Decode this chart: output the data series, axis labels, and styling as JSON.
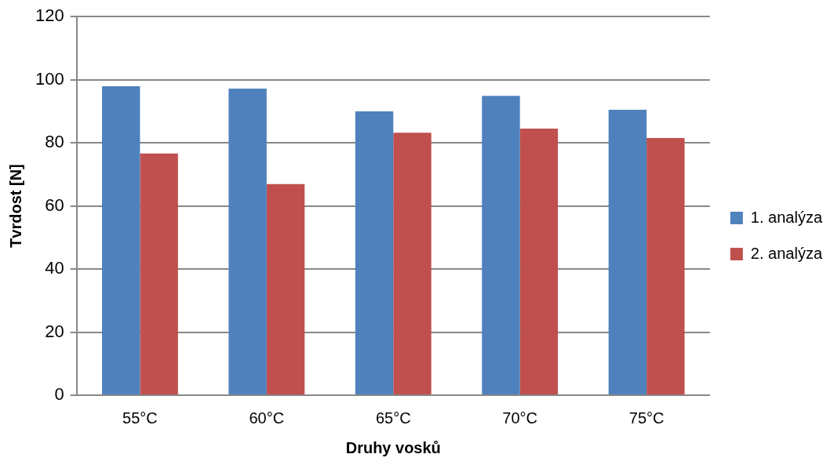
{
  "chart_data": {
    "type": "bar",
    "xlabel": "Druhy vosků",
    "ylabel": "Tvrdost [N]",
    "categories": [
      "55°C",
      "60°C",
      "65°C",
      "70°C",
      "75°C"
    ],
    "series": [
      {
        "name": "1. analýza",
        "color": "#4f81bd",
        "values": [
          97.9,
          97.2,
          90.0,
          94.9,
          90.5
        ]
      },
      {
        "name": "2. analýza",
        "color": "#c0504d",
        "values": [
          76.6,
          66.9,
          83.2,
          84.5,
          81.5
        ]
      }
    ],
    "ylim": [
      0,
      120
    ],
    "yticks": [
      0,
      20,
      40,
      60,
      80,
      100,
      120
    ],
    "grid": "y",
    "legend": "right"
  }
}
